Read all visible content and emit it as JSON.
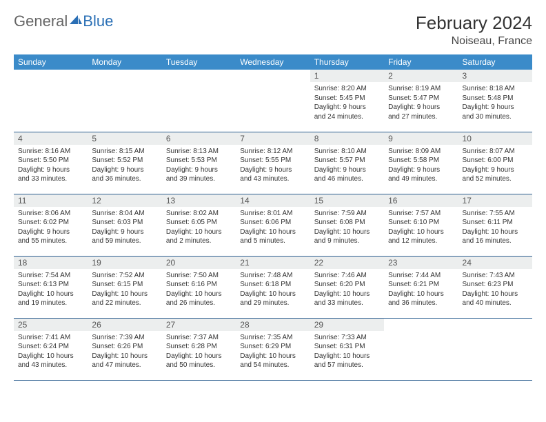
{
  "logo": {
    "text_general": "General",
    "text_blue": "Blue"
  },
  "header": {
    "month_title": "February 2024",
    "location": "Noiseau, France"
  },
  "colors": {
    "header_bg": "#3b8bc9",
    "header_text": "#ffffff",
    "daynum_bg": "#eceeee",
    "row_border": "#2a5d8f",
    "logo_blue": "#2a6fb5",
    "text": "#333333",
    "bg": "#ffffff"
  },
  "weekdays": [
    "Sunday",
    "Monday",
    "Tuesday",
    "Wednesday",
    "Thursday",
    "Friday",
    "Saturday"
  ],
  "weeks": [
    [
      {
        "day": "",
        "sunrise": "",
        "sunset": "",
        "daylight1": "",
        "daylight2": "",
        "empty": true
      },
      {
        "day": "",
        "sunrise": "",
        "sunset": "",
        "daylight1": "",
        "daylight2": "",
        "empty": true
      },
      {
        "day": "",
        "sunrise": "",
        "sunset": "",
        "daylight1": "",
        "daylight2": "",
        "empty": true
      },
      {
        "day": "",
        "sunrise": "",
        "sunset": "",
        "daylight1": "",
        "daylight2": "",
        "empty": true
      },
      {
        "day": "1",
        "sunrise": "Sunrise: 8:20 AM",
        "sunset": "Sunset: 5:45 PM",
        "daylight1": "Daylight: 9 hours",
        "daylight2": "and 24 minutes."
      },
      {
        "day": "2",
        "sunrise": "Sunrise: 8:19 AM",
        "sunset": "Sunset: 5:47 PM",
        "daylight1": "Daylight: 9 hours",
        "daylight2": "and 27 minutes."
      },
      {
        "day": "3",
        "sunrise": "Sunrise: 8:18 AM",
        "sunset": "Sunset: 5:48 PM",
        "daylight1": "Daylight: 9 hours",
        "daylight2": "and 30 minutes."
      }
    ],
    [
      {
        "day": "4",
        "sunrise": "Sunrise: 8:16 AM",
        "sunset": "Sunset: 5:50 PM",
        "daylight1": "Daylight: 9 hours",
        "daylight2": "and 33 minutes."
      },
      {
        "day": "5",
        "sunrise": "Sunrise: 8:15 AM",
        "sunset": "Sunset: 5:52 PM",
        "daylight1": "Daylight: 9 hours",
        "daylight2": "and 36 minutes."
      },
      {
        "day": "6",
        "sunrise": "Sunrise: 8:13 AM",
        "sunset": "Sunset: 5:53 PM",
        "daylight1": "Daylight: 9 hours",
        "daylight2": "and 39 minutes."
      },
      {
        "day": "7",
        "sunrise": "Sunrise: 8:12 AM",
        "sunset": "Sunset: 5:55 PM",
        "daylight1": "Daylight: 9 hours",
        "daylight2": "and 43 minutes."
      },
      {
        "day": "8",
        "sunrise": "Sunrise: 8:10 AM",
        "sunset": "Sunset: 5:57 PM",
        "daylight1": "Daylight: 9 hours",
        "daylight2": "and 46 minutes."
      },
      {
        "day": "9",
        "sunrise": "Sunrise: 8:09 AM",
        "sunset": "Sunset: 5:58 PM",
        "daylight1": "Daylight: 9 hours",
        "daylight2": "and 49 minutes."
      },
      {
        "day": "10",
        "sunrise": "Sunrise: 8:07 AM",
        "sunset": "Sunset: 6:00 PM",
        "daylight1": "Daylight: 9 hours",
        "daylight2": "and 52 minutes."
      }
    ],
    [
      {
        "day": "11",
        "sunrise": "Sunrise: 8:06 AM",
        "sunset": "Sunset: 6:02 PM",
        "daylight1": "Daylight: 9 hours",
        "daylight2": "and 55 minutes."
      },
      {
        "day": "12",
        "sunrise": "Sunrise: 8:04 AM",
        "sunset": "Sunset: 6:03 PM",
        "daylight1": "Daylight: 9 hours",
        "daylight2": "and 59 minutes."
      },
      {
        "day": "13",
        "sunrise": "Sunrise: 8:02 AM",
        "sunset": "Sunset: 6:05 PM",
        "daylight1": "Daylight: 10 hours",
        "daylight2": "and 2 minutes."
      },
      {
        "day": "14",
        "sunrise": "Sunrise: 8:01 AM",
        "sunset": "Sunset: 6:06 PM",
        "daylight1": "Daylight: 10 hours",
        "daylight2": "and 5 minutes."
      },
      {
        "day": "15",
        "sunrise": "Sunrise: 7:59 AM",
        "sunset": "Sunset: 6:08 PM",
        "daylight1": "Daylight: 10 hours",
        "daylight2": "and 9 minutes."
      },
      {
        "day": "16",
        "sunrise": "Sunrise: 7:57 AM",
        "sunset": "Sunset: 6:10 PM",
        "daylight1": "Daylight: 10 hours",
        "daylight2": "and 12 minutes."
      },
      {
        "day": "17",
        "sunrise": "Sunrise: 7:55 AM",
        "sunset": "Sunset: 6:11 PM",
        "daylight1": "Daylight: 10 hours",
        "daylight2": "and 16 minutes."
      }
    ],
    [
      {
        "day": "18",
        "sunrise": "Sunrise: 7:54 AM",
        "sunset": "Sunset: 6:13 PM",
        "daylight1": "Daylight: 10 hours",
        "daylight2": "and 19 minutes."
      },
      {
        "day": "19",
        "sunrise": "Sunrise: 7:52 AM",
        "sunset": "Sunset: 6:15 PM",
        "daylight1": "Daylight: 10 hours",
        "daylight2": "and 22 minutes."
      },
      {
        "day": "20",
        "sunrise": "Sunrise: 7:50 AM",
        "sunset": "Sunset: 6:16 PM",
        "daylight1": "Daylight: 10 hours",
        "daylight2": "and 26 minutes."
      },
      {
        "day": "21",
        "sunrise": "Sunrise: 7:48 AM",
        "sunset": "Sunset: 6:18 PM",
        "daylight1": "Daylight: 10 hours",
        "daylight2": "and 29 minutes."
      },
      {
        "day": "22",
        "sunrise": "Sunrise: 7:46 AM",
        "sunset": "Sunset: 6:20 PM",
        "daylight1": "Daylight: 10 hours",
        "daylight2": "and 33 minutes."
      },
      {
        "day": "23",
        "sunrise": "Sunrise: 7:44 AM",
        "sunset": "Sunset: 6:21 PM",
        "daylight1": "Daylight: 10 hours",
        "daylight2": "and 36 minutes."
      },
      {
        "day": "24",
        "sunrise": "Sunrise: 7:43 AM",
        "sunset": "Sunset: 6:23 PM",
        "daylight1": "Daylight: 10 hours",
        "daylight2": "and 40 minutes."
      }
    ],
    [
      {
        "day": "25",
        "sunrise": "Sunrise: 7:41 AM",
        "sunset": "Sunset: 6:24 PM",
        "daylight1": "Daylight: 10 hours",
        "daylight2": "and 43 minutes."
      },
      {
        "day": "26",
        "sunrise": "Sunrise: 7:39 AM",
        "sunset": "Sunset: 6:26 PM",
        "daylight1": "Daylight: 10 hours",
        "daylight2": "and 47 minutes."
      },
      {
        "day": "27",
        "sunrise": "Sunrise: 7:37 AM",
        "sunset": "Sunset: 6:28 PM",
        "daylight1": "Daylight: 10 hours",
        "daylight2": "and 50 minutes."
      },
      {
        "day": "28",
        "sunrise": "Sunrise: 7:35 AM",
        "sunset": "Sunset: 6:29 PM",
        "daylight1": "Daylight: 10 hours",
        "daylight2": "and 54 minutes."
      },
      {
        "day": "29",
        "sunrise": "Sunrise: 7:33 AM",
        "sunset": "Sunset: 6:31 PM",
        "daylight1": "Daylight: 10 hours",
        "daylight2": "and 57 minutes."
      },
      {
        "day": "",
        "sunrise": "",
        "sunset": "",
        "daylight1": "",
        "daylight2": "",
        "empty": true
      },
      {
        "day": "",
        "sunrise": "",
        "sunset": "",
        "daylight1": "",
        "daylight2": "",
        "empty": true
      }
    ]
  ]
}
